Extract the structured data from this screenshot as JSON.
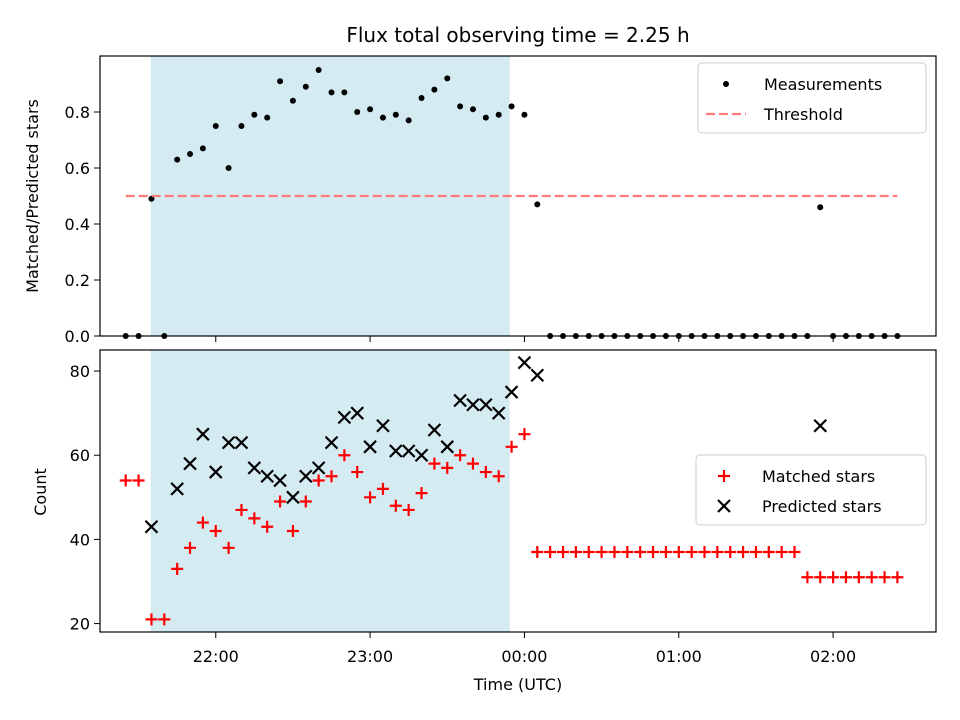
{
  "chart_data": [
    {
      "type": "scatter",
      "title": "Flux total observing time = 2.25 h",
      "xlabel": "",
      "ylabel": "Matched/Predicted stars",
      "xlim": [
        "21:15",
        "02:40"
      ],
      "ylim": [
        0,
        1.0
      ],
      "yticks": [
        "0.0",
        "0.2",
        "0.4",
        "0.6",
        "0.8"
      ],
      "shaded_span": {
        "from": "21:35",
        "to": "23:54",
        "color": "#add8e6"
      },
      "legend_position": "top-right",
      "series": [
        {
          "name": "Measurements",
          "marker": "dot",
          "color": "#000000",
          "points": [
            [
              "21:25",
              0
            ],
            [
              "21:30",
              0
            ],
            [
              "21:35",
              0.49
            ],
            [
              "21:40",
              0
            ],
            [
              "21:45",
              0.63
            ],
            [
              "21:50",
              0.65
            ],
            [
              "21:55",
              0.67
            ],
            [
              "22:00",
              0.75
            ],
            [
              "22:05",
              0.6
            ],
            [
              "22:10",
              0.75
            ],
            [
              "22:15",
              0.79
            ],
            [
              "22:20",
              0.78
            ],
            [
              "22:25",
              0.91
            ],
            [
              "22:30",
              0.84
            ],
            [
              "22:35",
              0.89
            ],
            [
              "22:40",
              0.95
            ],
            [
              "22:45",
              0.87
            ],
            [
              "22:50",
              0.87
            ],
            [
              "22:55",
              0.8
            ],
            [
              "23:00",
              0.81
            ],
            [
              "23:05",
              0.78
            ],
            [
              "23:10",
              0.79
            ],
            [
              "23:15",
              0.77
            ],
            [
              "23:20",
              0.85
            ],
            [
              "23:25",
              0.88
            ],
            [
              "23:30",
              0.92
            ],
            [
              "23:35",
              0.82
            ],
            [
              "23:40",
              0.81
            ],
            [
              "23:45",
              0.78
            ],
            [
              "23:50",
              0.79
            ],
            [
              "23:55",
              0.82
            ],
            [
              "00:00",
              0.79
            ],
            [
              "00:05",
              0.47
            ],
            [
              "00:10",
              0
            ],
            [
              "00:15",
              0
            ],
            [
              "00:20",
              0
            ],
            [
              "00:25",
              0
            ],
            [
              "00:30",
              0
            ],
            [
              "00:35",
              0
            ],
            [
              "00:40",
              0
            ],
            [
              "00:45",
              0
            ],
            [
              "00:50",
              0
            ],
            [
              "00:55",
              0
            ],
            [
              "01:00",
              0
            ],
            [
              "01:05",
              0
            ],
            [
              "01:10",
              0
            ],
            [
              "01:15",
              0
            ],
            [
              "01:20",
              0
            ],
            [
              "01:25",
              0
            ],
            [
              "01:30",
              0
            ],
            [
              "01:35",
              0
            ],
            [
              "01:40",
              0
            ],
            [
              "01:45",
              0
            ],
            [
              "01:50",
              0
            ],
            [
              "01:55",
              0.46
            ],
            [
              "02:00",
              0
            ],
            [
              "02:05",
              0
            ],
            [
              "02:10",
              0
            ],
            [
              "02:15",
              0
            ],
            [
              "02:20",
              0
            ],
            [
              "02:25",
              0
            ]
          ]
        },
        {
          "name": "Threshold",
          "marker": "dashed-line",
          "color": "#ff7b7b",
          "points": [
            [
              "21:25",
              0.5
            ],
            [
              "02:25",
              0.5
            ]
          ]
        }
      ]
    },
    {
      "type": "scatter",
      "title": "",
      "xlabel": "Time (UTC)",
      "ylabel": "Count",
      "xlim": [
        "21:15",
        "02:40"
      ],
      "ylim": [
        18,
        85
      ],
      "yticks": [
        "20",
        "40",
        "60",
        "80"
      ],
      "xticks": [
        "22:00",
        "23:00",
        "00:00",
        "01:00",
        "02:00"
      ],
      "shaded_span": {
        "from": "21:35",
        "to": "23:54",
        "color": "#add8e6"
      },
      "legend_position": "center-right",
      "series": [
        {
          "name": "Matched stars",
          "marker": "plus",
          "color": "#ff0000",
          "points": [
            [
              "21:25",
              54
            ],
            [
              "21:30",
              54
            ],
            [
              "21:35",
              21
            ],
            [
              "21:40",
              21
            ],
            [
              "21:45",
              33
            ],
            [
              "21:50",
              38
            ],
            [
              "21:55",
              44
            ],
            [
              "22:00",
              42
            ],
            [
              "22:05",
              38
            ],
            [
              "22:10",
              47
            ],
            [
              "22:15",
              45
            ],
            [
              "22:20",
              43
            ],
            [
              "22:25",
              49
            ],
            [
              "22:30",
              42
            ],
            [
              "22:35",
              49
            ],
            [
              "22:40",
              54
            ],
            [
              "22:45",
              55
            ],
            [
              "22:50",
              60
            ],
            [
              "22:55",
              56
            ],
            [
              "23:00",
              50
            ],
            [
              "23:05",
              52
            ],
            [
              "23:10",
              48
            ],
            [
              "23:15",
              47
            ],
            [
              "23:20",
              51
            ],
            [
              "23:25",
              58
            ],
            [
              "23:30",
              57
            ],
            [
              "23:35",
              60
            ],
            [
              "23:40",
              58
            ],
            [
              "23:45",
              56
            ],
            [
              "23:50",
              55
            ],
            [
              "23:55",
              62
            ],
            [
              "00:00",
              65
            ],
            [
              "00:05",
              37
            ],
            [
              "00:10",
              37
            ],
            [
              "00:15",
              37
            ],
            [
              "00:20",
              37
            ],
            [
              "00:25",
              37
            ],
            [
              "00:30",
              37
            ],
            [
              "00:35",
              37
            ],
            [
              "00:40",
              37
            ],
            [
              "00:45",
              37
            ],
            [
              "00:50",
              37
            ],
            [
              "00:55",
              37
            ],
            [
              "01:00",
              37
            ],
            [
              "01:05",
              37
            ],
            [
              "01:10",
              37
            ],
            [
              "01:15",
              37
            ],
            [
              "01:20",
              37
            ],
            [
              "01:25",
              37
            ],
            [
              "01:30",
              37
            ],
            [
              "01:35",
              37
            ],
            [
              "01:40",
              37
            ],
            [
              "01:45",
              37
            ],
            [
              "01:50",
              31
            ],
            [
              "01:55",
              31
            ],
            [
              "02:00",
              31
            ],
            [
              "02:05",
              31
            ],
            [
              "02:10",
              31
            ],
            [
              "02:15",
              31
            ],
            [
              "02:20",
              31
            ],
            [
              "02:25",
              31
            ]
          ]
        },
        {
          "name": "Predicted stars",
          "marker": "x",
          "color": "#000000",
          "points": [
            [
              "21:35",
              43
            ],
            [
              "21:45",
              52
            ],
            [
              "21:50",
              58
            ],
            [
              "21:55",
              65
            ],
            [
              "22:00",
              56
            ],
            [
              "22:05",
              63
            ],
            [
              "22:10",
              63
            ],
            [
              "22:15",
              57
            ],
            [
              "22:20",
              55
            ],
            [
              "22:25",
              54
            ],
            [
              "22:30",
              50
            ],
            [
              "22:35",
              55
            ],
            [
              "22:40",
              57
            ],
            [
              "22:45",
              63
            ],
            [
              "22:50",
              69
            ],
            [
              "22:55",
              70
            ],
            [
              "23:00",
              62
            ],
            [
              "23:05",
              67
            ],
            [
              "23:10",
              61
            ],
            [
              "23:15",
              61
            ],
            [
              "23:20",
              60
            ],
            [
              "23:25",
              66
            ],
            [
              "23:30",
              62
            ],
            [
              "23:35",
              73
            ],
            [
              "23:40",
              72
            ],
            [
              "23:45",
              72
            ],
            [
              "23:50",
              70
            ],
            [
              "23:55",
              75
            ],
            [
              "00:00",
              82
            ],
            [
              "00:05",
              79
            ],
            [
              "01:55",
              67
            ]
          ]
        }
      ]
    }
  ]
}
